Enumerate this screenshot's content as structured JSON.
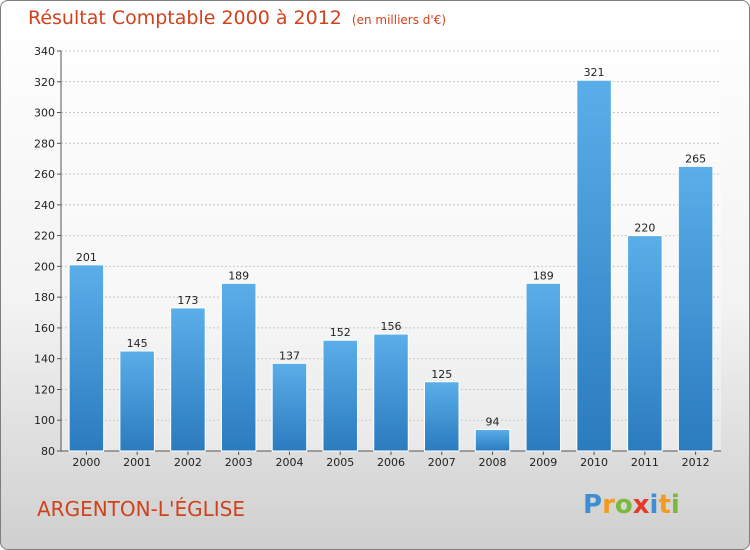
{
  "chart_data": {
    "type": "bar",
    "title": "Résultat Comptable 2000 à 2012",
    "subtitle": "(en milliers d'€)",
    "categories": [
      "2000",
      "2001",
      "2002",
      "2003",
      "2004",
      "2005",
      "2006",
      "2007",
      "2008",
      "2009",
      "2010",
      "2011",
      "2012"
    ],
    "values": [
      201,
      145,
      173,
      189,
      137,
      152,
      156,
      125,
      94,
      189,
      321,
      220,
      265
    ],
    "ylim": [
      80,
      340
    ],
    "yticks": [
      80,
      100,
      120,
      140,
      160,
      180,
      200,
      220,
      240,
      260,
      280,
      300,
      320,
      340
    ],
    "grid": true,
    "bar_color": "#3f94d8"
  },
  "commune": "ARGENTON-L'ÉGLISE",
  "logo": {
    "text": "Proxiti",
    "letters": [
      {
        "char": "P",
        "color": "#3d8fd1"
      },
      {
        "char": "r",
        "color": "#f39a1f"
      },
      {
        "char": "o",
        "color": "#7cb93b"
      },
      {
        "char": "x",
        "color": "#e23b2a"
      },
      {
        "char": "i",
        "color": "#3d8fd1"
      },
      {
        "char": "t",
        "color": "#f39a1f"
      },
      {
        "char": "i",
        "color": "#7cb93b"
      }
    ]
  }
}
